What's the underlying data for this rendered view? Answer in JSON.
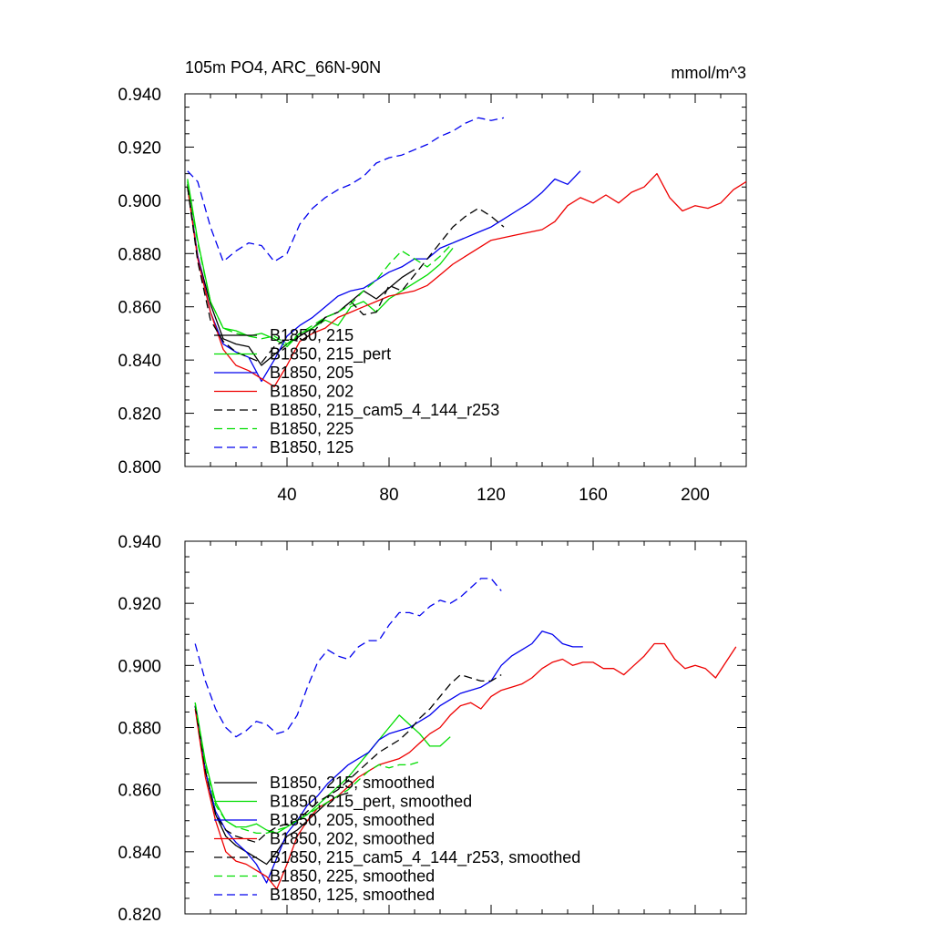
{
  "title_left": "105m PO4, ARC_66N-90N",
  "title_right": "mmol/m^3",
  "series_styles": [
    {
      "color": "#000000",
      "dash": false
    },
    {
      "color": "#00dd00",
      "dash": false
    },
    {
      "color": "#0000ee",
      "dash": false
    },
    {
      "color": "#ee0000",
      "dash": false
    },
    {
      "color": "#000000",
      "dash": true
    },
    {
      "color": "#00dd00",
      "dash": true
    },
    {
      "color": "#0000ee",
      "dash": true
    }
  ],
  "chart_data": [
    {
      "type": "line",
      "title": "105m PO4, ARC_66N-90N",
      "units": "mmol/m^3",
      "xlim": [
        0,
        220
      ],
      "ylim": [
        0.8,
        0.94
      ],
      "x_ticks": [
        40,
        80,
        120,
        160,
        200
      ],
      "y_ticks": [
        "0.800",
        "0.820",
        "0.840",
        "0.860",
        "0.880",
        "0.900",
        "0.920",
        "0.940"
      ],
      "series": [
        {
          "name": "B1850, 215",
          "x": [
            1,
            5,
            10,
            15,
            20,
            25,
            30,
            35,
            40,
            45,
            50,
            55,
            60,
            65,
            70,
            75,
            80,
            85,
            90
          ],
          "y": [
            0.906,
            0.879,
            0.861,
            0.848,
            0.846,
            0.845,
            0.838,
            0.842,
            0.846,
            0.849,
            0.852,
            0.856,
            0.858,
            0.862,
            0.866,
            0.863,
            0.867,
            0.871,
            0.874
          ]
        },
        {
          "name": "B1850, 215_pert",
          "x": [
            1,
            5,
            10,
            15,
            20,
            25,
            30,
            35,
            40,
            45,
            50,
            55,
            60,
            65,
            70,
            75,
            80,
            85,
            90,
            95,
            100,
            105
          ],
          "y": [
            0.908,
            0.885,
            0.862,
            0.852,
            0.851,
            0.849,
            0.85,
            0.848,
            0.845,
            0.85,
            0.852,
            0.855,
            0.853,
            0.86,
            0.862,
            0.858,
            0.863,
            0.866,
            0.869,
            0.872,
            0.876,
            0.882
          ]
        },
        {
          "name": "B1850, 205",
          "x": [
            1,
            5,
            10,
            15,
            20,
            25,
            30,
            35,
            40,
            45,
            50,
            55,
            60,
            65,
            70,
            75,
            80,
            85,
            90,
            95,
            100,
            105,
            110,
            115,
            120,
            125,
            130,
            135,
            140,
            145,
            150,
            155
          ],
          "y": [
            0.905,
            0.879,
            0.858,
            0.846,
            0.843,
            0.841,
            0.832,
            0.84,
            0.849,
            0.853,
            0.856,
            0.86,
            0.864,
            0.866,
            0.867,
            0.87,
            0.873,
            0.875,
            0.878,
            0.878,
            0.882,
            0.884,
            0.886,
            0.888,
            0.89,
            0.893,
            0.896,
            0.899,
            0.903,
            0.908,
            0.906,
            0.911
          ]
        },
        {
          "name": "B1850, 202",
          "x": [
            1,
            5,
            10,
            15,
            20,
            25,
            30,
            35,
            40,
            45,
            50,
            55,
            60,
            65,
            70,
            75,
            80,
            85,
            90,
            95,
            100,
            105,
            110,
            115,
            120,
            125,
            130,
            135,
            140,
            145,
            150,
            155,
            160,
            165,
            170,
            175,
            180,
            185,
            190,
            195,
            200,
            205,
            210,
            215,
            220
          ],
          "y": [
            0.905,
            0.878,
            0.858,
            0.844,
            0.838,
            0.836,
            0.833,
            0.83,
            0.838,
            0.847,
            0.85,
            0.852,
            0.856,
            0.858,
            0.86,
            0.862,
            0.864,
            0.865,
            0.866,
            0.868,
            0.872,
            0.876,
            0.879,
            0.882,
            0.885,
            0.886,
            0.887,
            0.888,
            0.889,
            0.892,
            0.898,
            0.901,
            0.899,
            0.902,
            0.899,
            0.903,
            0.905,
            0.91,
            0.901,
            0.896,
            0.898,
            0.897,
            0.899,
            0.904,
            0.907
          ]
        },
        {
          "name": "B1850, 215_cam5_4_144_r253",
          "x": [
            1,
            5,
            10,
            15,
            20,
            25,
            30,
            35,
            40,
            45,
            50,
            55,
            60,
            65,
            70,
            75,
            80,
            85,
            90,
            95,
            100,
            105,
            110,
            115,
            120,
            125
          ],
          "y": [
            0.905,
            0.877,
            0.855,
            0.847,
            0.843,
            0.841,
            0.839,
            0.845,
            0.848,
            0.847,
            0.85,
            0.856,
            0.858,
            0.862,
            0.857,
            0.858,
            0.868,
            0.866,
            0.872,
            0.878,
            0.884,
            0.89,
            0.894,
            0.897,
            0.894,
            0.89
          ]
        },
        {
          "name": "B1850, 225",
          "x": [
            1,
            5,
            10,
            15,
            20,
            25,
            30,
            35,
            40,
            45,
            50,
            55,
            60,
            65,
            70,
            75,
            80,
            85,
            90,
            95,
            100,
            105
          ],
          "y": [
            0.907,
            0.884,
            0.862,
            0.852,
            0.85,
            0.849,
            0.848,
            0.849,
            0.846,
            0.85,
            0.853,
            0.856,
            0.858,
            0.861,
            0.866,
            0.87,
            0.876,
            0.881,
            0.878,
            0.875,
            0.879,
            0.884
          ]
        },
        {
          "name": "B1850, 125",
          "x": [
            1,
            5,
            10,
            15,
            20,
            25,
            30,
            35,
            40,
            45,
            50,
            55,
            60,
            65,
            70,
            75,
            80,
            85,
            90,
            95,
            100,
            105,
            110,
            115,
            120,
            125
          ],
          "y": [
            0.911,
            0.907,
            0.89,
            0.877,
            0.881,
            0.884,
            0.883,
            0.877,
            0.88,
            0.891,
            0.897,
            0.901,
            0.904,
            0.906,
            0.909,
            0.914,
            0.916,
            0.917,
            0.919,
            0.921,
            0.924,
            0.926,
            0.929,
            0.931,
            0.93,
            0.931
          ]
        }
      ]
    },
    {
      "type": "line",
      "xlim": [
        0,
        220
      ],
      "ylim": [
        0.82,
        0.94
      ],
      "y_ticks": [
        "0.820",
        "0.840",
        "0.860",
        "0.880",
        "0.900",
        "0.920",
        "0.940"
      ],
      "series": [
        {
          "name": "B1850, 215, smoothed",
          "x": [
            4,
            8,
            12,
            16,
            20,
            24,
            28,
            32,
            36,
            40,
            44,
            48,
            52,
            56,
            60,
            64
          ],
          "y": [
            0.887,
            0.866,
            0.852,
            0.845,
            0.842,
            0.84,
            0.838,
            0.836,
            0.84,
            0.845,
            0.847,
            0.85,
            0.853,
            0.856,
            0.858,
            0.859
          ]
        },
        {
          "name": "B1850, 215_pert, smoothed",
          "x": [
            4,
            8,
            12,
            16,
            20,
            24,
            28,
            32,
            36,
            40,
            44,
            48,
            52,
            56,
            60,
            64,
            68,
            72,
            76,
            80,
            84,
            88,
            92,
            96,
            100,
            104
          ],
          "y": [
            0.888,
            0.869,
            0.856,
            0.85,
            0.848,
            0.848,
            0.849,
            0.847,
            0.846,
            0.848,
            0.85,
            0.852,
            0.855,
            0.858,
            0.861,
            0.864,
            0.868,
            0.872,
            0.876,
            0.88,
            0.884,
            0.881,
            0.878,
            0.874,
            0.874,
            0.877
          ]
        },
        {
          "name": "B1850, 205, smoothed",
          "x": [
            4,
            8,
            12,
            16,
            20,
            24,
            28,
            32,
            36,
            40,
            44,
            48,
            52,
            56,
            60,
            64,
            68,
            72,
            76,
            80,
            84,
            88,
            92,
            96,
            100,
            104,
            108,
            112,
            116,
            120,
            124,
            128,
            132,
            136,
            140,
            144,
            148,
            152,
            156
          ],
          "y": [
            0.887,
            0.866,
            0.853,
            0.847,
            0.843,
            0.84,
            0.836,
            0.83,
            0.838,
            0.846,
            0.85,
            0.855,
            0.858,
            0.862,
            0.865,
            0.868,
            0.87,
            0.872,
            0.876,
            0.878,
            0.879,
            0.88,
            0.882,
            0.884,
            0.887,
            0.889,
            0.891,
            0.892,
            0.893,
            0.895,
            0.9,
            0.903,
            0.905,
            0.907,
            0.911,
            0.91,
            0.907,
            0.906,
            0.906
          ]
        },
        {
          "name": "B1850, 202, smoothed",
          "x": [
            4,
            8,
            12,
            16,
            20,
            24,
            28,
            32,
            36,
            40,
            44,
            48,
            52,
            56,
            60,
            64,
            68,
            72,
            76,
            80,
            84,
            88,
            92,
            96,
            100,
            104,
            108,
            112,
            116,
            120,
            124,
            128,
            132,
            136,
            140,
            144,
            148,
            152,
            156,
            160,
            164,
            168,
            172,
            176,
            180,
            184,
            188,
            192,
            196,
            200,
            204,
            208,
            212,
            216
          ],
          "y": [
            0.886,
            0.864,
            0.85,
            0.84,
            0.837,
            0.836,
            0.834,
            0.832,
            0.828,
            0.836,
            0.845,
            0.85,
            0.854,
            0.856,
            0.858,
            0.861,
            0.864,
            0.866,
            0.868,
            0.869,
            0.87,
            0.872,
            0.875,
            0.878,
            0.88,
            0.884,
            0.887,
            0.888,
            0.886,
            0.89,
            0.892,
            0.893,
            0.894,
            0.896,
            0.899,
            0.901,
            0.902,
            0.9,
            0.901,
            0.901,
            0.899,
            0.899,
            0.897,
            0.9,
            0.903,
            0.907,
            0.907,
            0.902,
            0.899,
            0.9,
            0.899,
            0.896,
            0.901,
            0.906
          ]
        },
        {
          "name": "B1850, 215_cam5_4_144_r253, smoothed",
          "x": [
            4,
            8,
            12,
            16,
            20,
            24,
            28,
            32,
            36,
            40,
            44,
            48,
            52,
            56,
            60,
            64,
            68,
            72,
            76,
            80,
            84,
            88,
            92,
            96,
            100,
            104,
            108,
            112,
            116,
            120,
            124
          ],
          "y": [
            0.887,
            0.866,
            0.852,
            0.847,
            0.845,
            0.844,
            0.843,
            0.846,
            0.848,
            0.849,
            0.85,
            0.853,
            0.856,
            0.858,
            0.86,
            0.863,
            0.866,
            0.869,
            0.872,
            0.874,
            0.876,
            0.879,
            0.883,
            0.886,
            0.89,
            0.894,
            0.897,
            0.896,
            0.895,
            0.895,
            0.897
          ]
        },
        {
          "name": "B1850, 225, smoothed",
          "x": [
            4,
            8,
            12,
            16,
            20,
            24,
            28,
            32,
            36,
            40,
            44,
            48,
            52,
            56,
            60,
            64,
            68,
            72,
            76,
            80,
            84,
            88,
            92
          ],
          "y": [
            0.888,
            0.868,
            0.855,
            0.85,
            0.848,
            0.847,
            0.846,
            0.846,
            0.847,
            0.848,
            0.85,
            0.852,
            0.854,
            0.856,
            0.858,
            0.86,
            0.863,
            0.866,
            0.868,
            0.867,
            0.868,
            0.868,
            0.869
          ]
        },
        {
          "name": "B1850, 125, smoothed",
          "x": [
            4,
            8,
            12,
            16,
            20,
            24,
            28,
            32,
            36,
            40,
            44,
            48,
            52,
            56,
            60,
            64,
            68,
            72,
            76,
            80,
            84,
            88,
            92,
            96,
            100,
            104,
            108,
            112,
            116,
            120,
            124
          ],
          "y": [
            0.907,
            0.895,
            0.886,
            0.88,
            0.877,
            0.879,
            0.882,
            0.881,
            0.878,
            0.879,
            0.884,
            0.893,
            0.901,
            0.905,
            0.903,
            0.902,
            0.906,
            0.908,
            0.908,
            0.913,
            0.917,
            0.917,
            0.916,
            0.919,
            0.921,
            0.92,
            0.922,
            0.925,
            0.928,
            0.928,
            0.924
          ]
        }
      ]
    }
  ]
}
